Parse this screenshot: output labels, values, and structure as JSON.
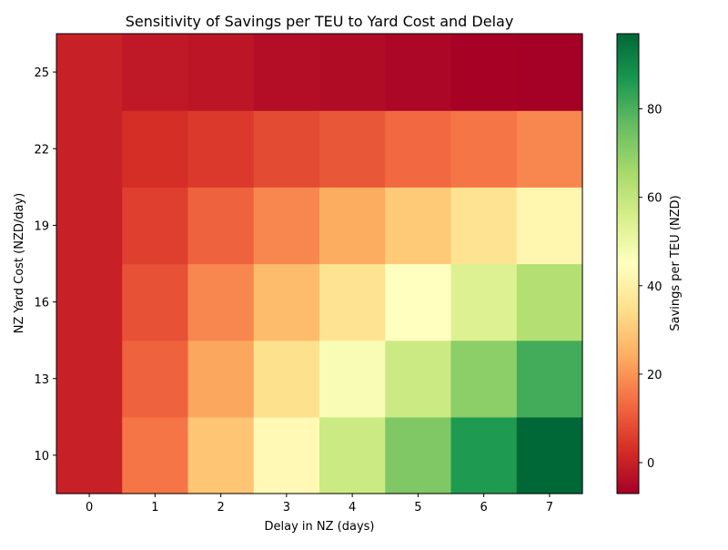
{
  "chart_data": {
    "type": "heatmap",
    "title": "Sensitivity of Savings per TEU to Yard Cost and Delay",
    "xlabel": "Delay in NZ (days)",
    "ylabel": "NZ Yard Cost (NZD/day)",
    "colorbar_label": "Savings per TEU (NZD)",
    "colormap": "RdYlGn",
    "x": [
      0,
      1,
      2,
      3,
      4,
      5,
      6,
      7
    ],
    "y": [
      10,
      13,
      16,
      19,
      22,
      25
    ],
    "z": [
      [
        0,
        15,
        29,
        43,
        58,
        72,
        86,
        97
      ],
      [
        0,
        12,
        23,
        35,
        47,
        58,
        70,
        81
      ],
      [
        0,
        9,
        18,
        27,
        36,
        45,
        54,
        63
      ],
      [
        0,
        6,
        12,
        18,
        24,
        30,
        36,
        42
      ],
      [
        0,
        3,
        5,
        8,
        10,
        13,
        15,
        18
      ],
      [
        0,
        -1.5,
        -2.5,
        -4,
        -4.5,
        -5.5,
        -6.5,
        -7
      ]
    ],
    "zlim": [
      -7,
      97
    ],
    "colorbar_ticks": [
      0,
      20,
      40,
      60,
      80
    ],
    "grid": false
  }
}
